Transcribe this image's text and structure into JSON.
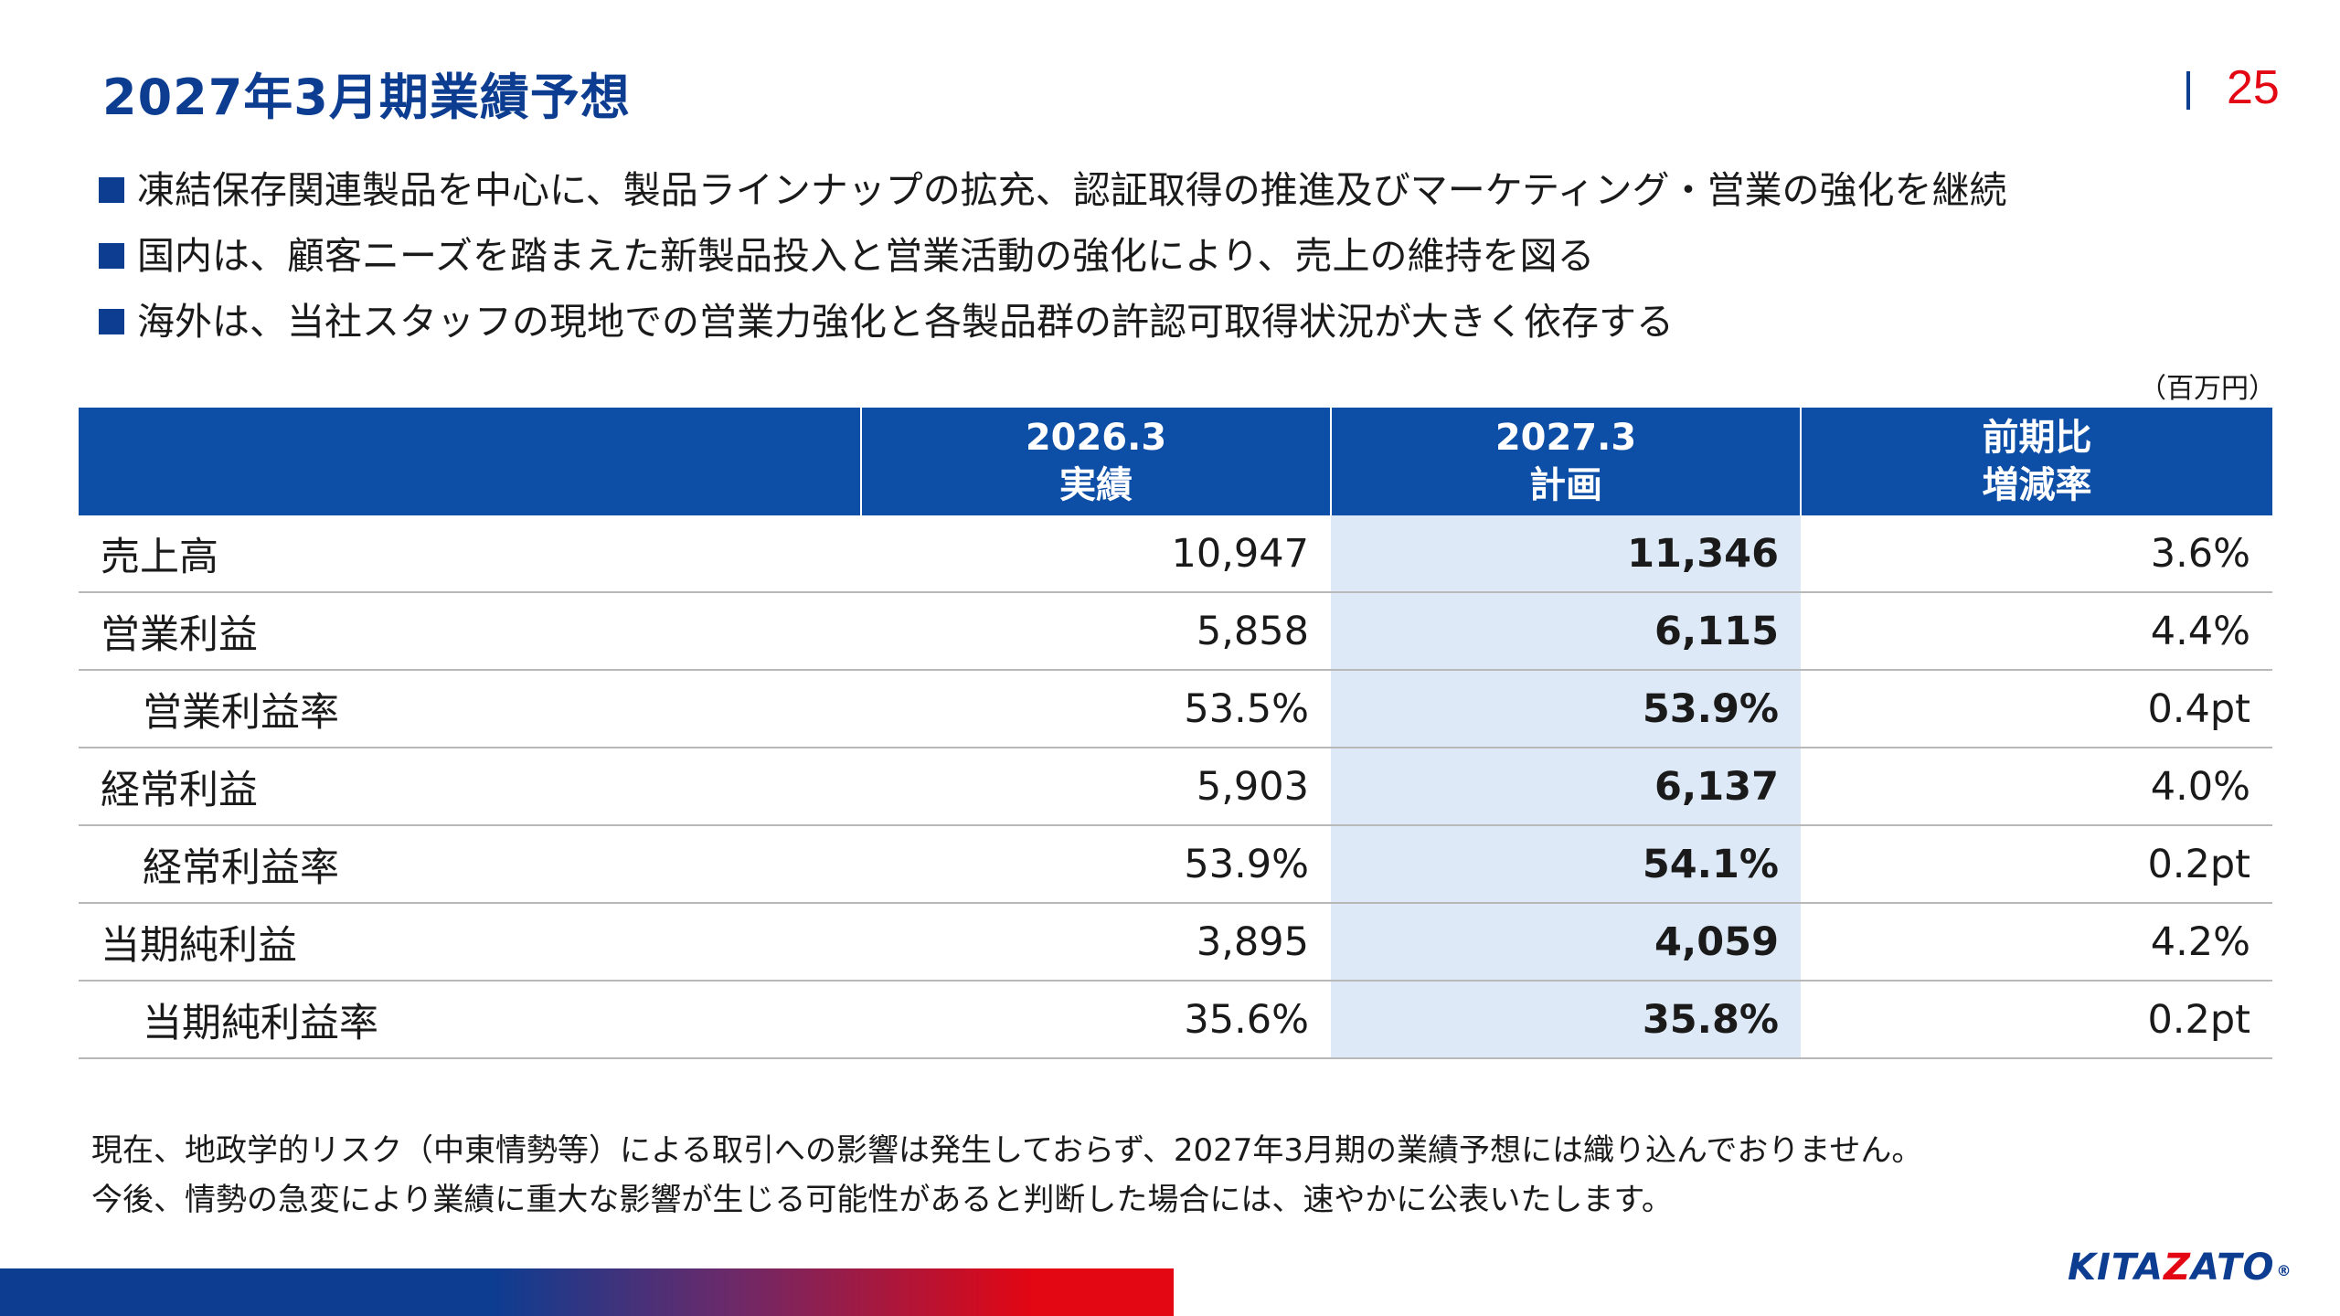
{
  "header": {
    "title": "2027年3月期業績予想",
    "page_number": "25"
  },
  "bullets": [
    "凍結保存関連製品を中心に、製品ラインナップの拡充、認証取得の推進及びマーケティング・営業の強化を継続",
    "国内は、顧客ニーズを踏まえた新製品投入と営業活動の強化により、売上の維持を図る",
    "海外は、当社スタッフの現地での営業力強化と各製品群の許認可取得状況が大きく依存する"
  ],
  "table": {
    "unit": "（百万円）",
    "headers": {
      "col1_line1": "2026.3",
      "col1_line2": "実績",
      "col2_line1": "2027.3",
      "col2_line2": "計画",
      "col3_line1": "前期比",
      "col3_line2": "増減率"
    },
    "rows": [
      {
        "label": "売上高",
        "actual": "10,947",
        "plan": "11,346",
        "change": "3.6%"
      },
      {
        "label": "営業利益",
        "actual": "5,858",
        "plan": "6,115",
        "change": "4.4%"
      },
      {
        "label": "営業利益率",
        "actual": "53.5%",
        "plan": "53.9%",
        "change": "0.4pt"
      },
      {
        "label": "経常利益",
        "actual": "5,903",
        "plan": "6,137",
        "change": "4.0%"
      },
      {
        "label": "経常利益率",
        "actual": "53.9%",
        "plan": "54.1%",
        "change": "0.2pt"
      },
      {
        "label": "当期純利益",
        "actual": "3,895",
        "plan": "4,059",
        "change": "4.2%"
      },
      {
        "label": "当期純利益率",
        "actual": "35.6%",
        "plan": "35.8%",
        "change": "0.2pt"
      }
    ]
  },
  "notes": [
    "現在、地政学的リスク（中東情勢等）による取引への影響は発生しておらず、2027年3月期の業績予想には織り込んでおりません。",
    "今後、情勢の急変により業績に重大な影響が生じる可能性があると判断した場合には、速やかに公表いたします。"
  ],
  "logo": {
    "part1": "KITA",
    "part2": "Z",
    "part3": "ATO",
    "reg": "®"
  },
  "colors": {
    "brand_blue": "#0d3d91",
    "header_blue": "#0d4ea6",
    "accent_red": "#e30613",
    "plan_column_bg": "#dde9f6"
  }
}
